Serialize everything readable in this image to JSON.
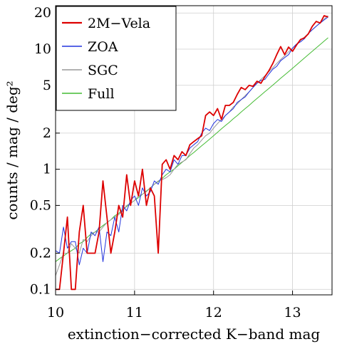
{
  "chart_data": {
    "type": "line",
    "xlabel": "extinction−corrected K−band mag",
    "ylabel": "counts / mag / deg²",
    "xlim": [
      10,
      13.5
    ],
    "ylim": [
      0.09,
      23
    ],
    "yscale": "log",
    "grid": true,
    "legend_position": "top-left",
    "x_ticks": [
      10,
      11,
      12,
      13
    ],
    "x_tick_labels": [
      "10",
      "11",
      "12",
      "13"
    ],
    "y_ticks": [
      0.1,
      0.2,
      0.5,
      1,
      2,
      5,
      10,
      20
    ],
    "y_tick_labels": [
      "0.1",
      "0.2",
      "0.5",
      "1",
      "2",
      "5",
      "10",
      "20"
    ],
    "x": [
      10.0,
      10.05,
      10.1,
      10.15,
      10.2,
      10.25,
      10.3,
      10.35,
      10.4,
      10.45,
      10.5,
      10.55,
      10.6,
      10.65,
      10.7,
      10.75,
      10.8,
      10.85,
      10.9,
      10.95,
      11.0,
      11.05,
      11.1,
      11.15,
      11.2,
      11.25,
      11.3,
      11.35,
      11.4,
      11.45,
      11.5,
      11.55,
      11.6,
      11.65,
      11.7,
      11.75,
      11.8,
      11.85,
      11.9,
      11.95,
      12.0,
      12.05,
      12.1,
      12.15,
      12.2,
      12.25,
      12.3,
      12.35,
      12.4,
      12.45,
      12.5,
      12.55,
      12.6,
      12.65,
      12.7,
      12.75,
      12.8,
      12.85,
      12.9,
      12.95,
      13.0,
      13.05,
      13.1,
      13.15,
      13.2,
      13.25,
      13.3,
      13.35,
      13.4,
      13.45
    ],
    "series": [
      {
        "name": "2M−Vela",
        "color": "#dd0000",
        "width": 1.8,
        "values": [
          0.1,
          0.1,
          0.2,
          0.4,
          0.1,
          0.1,
          0.3,
          0.5,
          0.2,
          0.2,
          0.2,
          0.3,
          0.8,
          0.4,
          0.2,
          0.3,
          0.5,
          0.4,
          0.9,
          0.5,
          0.8,
          0.6,
          1.0,
          0.5,
          0.7,
          0.6,
          0.2,
          1.1,
          1.2,
          1.0,
          1.3,
          1.2,
          1.4,
          1.3,
          1.6,
          1.7,
          1.8,
          1.9,
          2.8,
          3.0,
          2.8,
          3.2,
          2.6,
          3.4,
          3.4,
          3.6,
          4.2,
          4.8,
          4.6,
          5.0,
          4.9,
          5.4,
          5.2,
          5.9,
          6.6,
          7.6,
          9.0,
          10.5,
          9.0,
          10.4,
          9.6,
          10.8,
          12.0,
          12.4,
          13.4,
          15.5,
          17.0,
          16.5,
          19.0,
          18.5
        ]
      },
      {
        "name": "ZOA",
        "color": "#2233dd",
        "width": 1.0,
        "values": [
          0.21,
          0.2,
          0.33,
          0.22,
          0.25,
          0.25,
          0.16,
          0.22,
          0.2,
          0.3,
          0.28,
          0.33,
          0.17,
          0.3,
          0.28,
          0.4,
          0.3,
          0.5,
          0.45,
          0.55,
          0.6,
          0.5,
          0.7,
          0.6,
          0.65,
          0.8,
          0.75,
          0.9,
          1.0,
          0.95,
          1.2,
          1.1,
          1.3,
          1.3,
          1.5,
          1.6,
          1.7,
          2.0,
          2.2,
          2.1,
          2.4,
          2.6,
          2.5,
          2.8,
          3.0,
          3.2,
          3.6,
          3.8,
          4.0,
          4.4,
          4.8,
          5.2,
          5.5,
          5.6,
          6.2,
          6.8,
          7.2,
          8.0,
          8.5,
          9.0,
          10.2,
          11.0,
          11.5,
          12.2,
          13.5,
          14.5,
          15.5,
          16.5,
          17.5,
          18.5
        ]
      },
      {
        "name": "SGC",
        "color": "#999999",
        "width": 1.0,
        "values": [
          0.13,
          0.16,
          0.2,
          0.2,
          0.24,
          0.22,
          0.2,
          0.26,
          0.25,
          0.28,
          0.3,
          0.3,
          0.33,
          0.36,
          0.38,
          0.4,
          0.42,
          0.45,
          0.5,
          0.52,
          0.55,
          0.6,
          0.62,
          0.65,
          0.7,
          0.75,
          0.8,
          0.82,
          0.85,
          0.9,
          1.0,
          1.1,
          1.15,
          1.2,
          1.35,
          1.5,
          1.6,
          1.75,
          1.9,
          2.0,
          2.2,
          2.4,
          2.6,
          2.8,
          3.0,
          3.3,
          3.5,
          3.8,
          4.1,
          4.4,
          4.8,
          5.2,
          5.6,
          6.0,
          6.5,
          7.0,
          7.6,
          8.2,
          8.8,
          9.5,
          10.2,
          11.0,
          11.8,
          12.6,
          13.5,
          14.5,
          15.5,
          16.6,
          17.8,
          19.0
        ]
      },
      {
        "name": "Full",
        "color": "#44bb33",
        "width": 1.0,
        "values": [
          0.17,
          0.18,
          0.19,
          0.2,
          0.21,
          0.22,
          0.24,
          0.25,
          0.27,
          0.29,
          0.3,
          0.32,
          0.34,
          0.36,
          0.38,
          0.41,
          0.43,
          0.46,
          0.49,
          0.52,
          0.55,
          0.58,
          0.62,
          0.66,
          0.7,
          0.75,
          0.79,
          0.84,
          0.9,
          0.95,
          1.0,
          1.07,
          1.14,
          1.21,
          1.3,
          1.38,
          1.47,
          1.57,
          1.67,
          1.78,
          1.9,
          2.03,
          2.17,
          2.31,
          2.46,
          2.63,
          2.8,
          3.0,
          3.2,
          3.4,
          3.64,
          3.88,
          4.14,
          4.42,
          4.7,
          5.02,
          5.36,
          5.72,
          6.1,
          6.5,
          6.93,
          7.4,
          7.9,
          8.43,
          9.0,
          9.6,
          10.24,
          10.93,
          11.66,
          12.44
        ]
      }
    ]
  }
}
